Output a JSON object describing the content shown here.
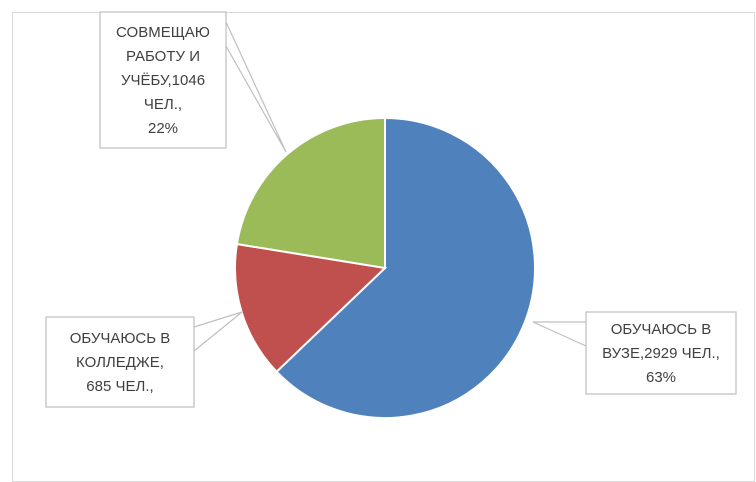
{
  "chart_data": {
    "type": "pie",
    "slices": [
      {
        "label": "ОБУЧАЮСЬ В ВУЗЕ",
        "count": 2929,
        "percent": 63,
        "color": "#4F81BD",
        "callout_lines": [
          "ОБУЧАЮСЬ В",
          "ВУЗЕ,2929 ЧЕЛ.,",
          "63%"
        ]
      },
      {
        "label": "ОБУЧАЮСЬ В КОЛЛЕДЖЕ",
        "count": 685,
        "percent": 15,
        "color": "#C0504D",
        "callout_lines": [
          "ОБУЧАЮСЬ В",
          "КОЛЛЕДЖЕ,",
          "685 ЧЕЛ.,"
        ]
      },
      {
        "label": "СОВМЕЩАЮ РАБОТУ И УЧЁБУ",
        "count": 1046,
        "percent": 22,
        "color": "#9BBB59",
        "callout_lines": [
          "СОВМЕЩАЮ",
          "РАБОТУ И",
          "УЧЁБУ,1046",
          "ЧЕЛ.,",
          "22%"
        ]
      }
    ],
    "title": "",
    "legend": "none"
  }
}
